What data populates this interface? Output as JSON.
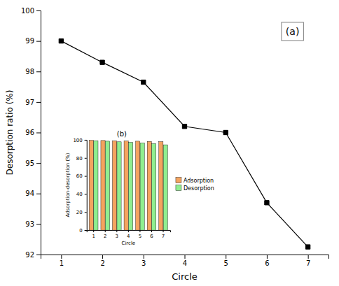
{
  "chart_data": [
    {
      "type": "line",
      "x": [
        1,
        2,
        3,
        4,
        5,
        6,
        7
      ],
      "series": [
        {
          "values": [
            99.0,
            98.3,
            97.65,
            96.2,
            96.0,
            93.7,
            92.25
          ],
          "color": "black",
          "marker": "square"
        }
      ],
      "xlabel": "Circle",
      "ylabel": "Desorption ratio (%)",
      "xlim": [
        0.5,
        7.5
      ],
      "ylim": [
        92,
        100
      ],
      "xticks": [
        1,
        2,
        3,
        4,
        5,
        6,
        7
      ],
      "yticks": [
        92,
        93,
        94,
        95,
        96,
        97,
        98,
        99,
        100
      ],
      "annotations": [
        "(a)"
      ]
    },
    {
      "type": "bar",
      "categories": [
        "1",
        "2",
        "3",
        "4",
        "5",
        "6",
        "7"
      ],
      "series": [
        {
          "name": "Adsorption",
          "color": "#F4A460",
          "values": [
            99.5,
            99.3,
            99.0,
            98.8,
            98.5,
            98.2,
            98.0
          ]
        },
        {
          "name": "Desorption",
          "color": "#90EE90",
          "values": [
            99.0,
            98.5,
            97.8,
            97.2,
            96.5,
            95.8,
            94.5
          ]
        }
      ],
      "xlabel": "Circle",
      "ylabel": "Adsorption-desorption (%)",
      "ylim": [
        0,
        100
      ],
      "yticks": [
        0,
        20,
        40,
        60,
        80,
        100
      ],
      "legend": "right",
      "annotations": [
        "(b)"
      ]
    }
  ]
}
